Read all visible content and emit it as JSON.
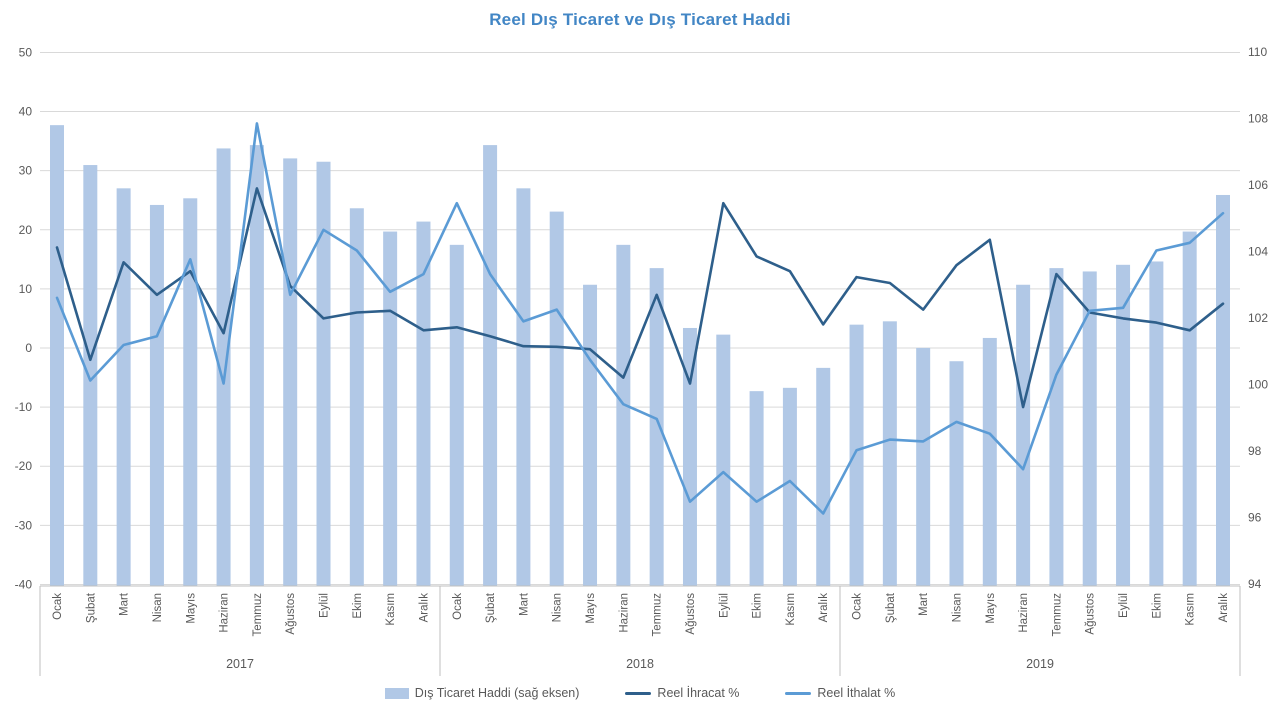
{
  "chart_data": {
    "type": "combo-bar-line",
    "title": "Reel Dış Ticaret ve Dış Ticaret Haddi",
    "months": [
      "Ocak",
      "Şubat",
      "Mart",
      "Nisan",
      "Mayıs",
      "Haziran",
      "Temmuz",
      "Ağustos",
      "Eylül",
      "Ekim",
      "Kasım",
      "Aralık"
    ],
    "years": [
      "2017",
      "2018",
      "2019"
    ],
    "left_axis": {
      "min": -40,
      "max": 50,
      "step": 10,
      "side": "left"
    },
    "right_axis": {
      "min": 94,
      "max": 110,
      "step": 2,
      "side": "right"
    },
    "grid": true,
    "legend_position": "bottom",
    "series": [
      {
        "name": "Dış Ticaret Haddi (sağ eksen)",
        "type": "bar",
        "axis": "right",
        "color": "#b1c8e6",
        "values": [
          107.8,
          106.6,
          105.9,
          105.4,
          105.6,
          107.1,
          107.2,
          106.8,
          106.7,
          105.3,
          104.6,
          104.9,
          104.2,
          107.2,
          105.9,
          105.2,
          103.0,
          104.2,
          103.5,
          101.7,
          101.5,
          99.8,
          99.9,
          100.5,
          101.8,
          101.9,
          101.1,
          100.7,
          101.4,
          103.0,
          103.5,
          103.4,
          103.6,
          103.7,
          104.6,
          105.7
        ]
      },
      {
        "name": "Reel İhracat %",
        "type": "line",
        "axis": "left",
        "color": "#2e5f8b",
        "values": [
          17,
          -2,
          14.5,
          9,
          13,
          2.5,
          27,
          10.5,
          5,
          6,
          6.3,
          3,
          3.5,
          2,
          0.3,
          0.2,
          -0.2,
          -5,
          9,
          -6,
          24.5,
          15.5,
          13,
          4,
          12,
          11,
          6.5,
          14,
          18.3,
          -10,
          12.5,
          6,
          5,
          4.3,
          3,
          7.5
        ]
      },
      {
        "name": "Reel İthalat %",
        "type": "line",
        "axis": "left",
        "color": "#5b9bd5",
        "values": [
          8.5,
          -5.5,
          0.5,
          2,
          15,
          -6,
          38,
          9,
          20,
          16.5,
          9.5,
          12.5,
          24.5,
          12.5,
          4.5,
          6.5,
          -2,
          -9.5,
          -12,
          -26,
          -21,
          -26,
          -22.5,
          -28,
          -17.3,
          -15.5,
          -15.8,
          -12.5,
          -14.5,
          -20.5,
          -4.5,
          6.3,
          6.8,
          16.5,
          17.8,
          22.8
        ]
      }
    ],
    "colors": {
      "title": "#4286c5",
      "axis_text": "#595959",
      "gridline": "#d9d9d9",
      "axis_line": "#bfbfbf"
    }
  },
  "legend": {
    "bar_label": "Dış Ticaret Haddi (sağ eksen)",
    "export_label": "Reel İhracat %",
    "import_label": "Reel İthalat %"
  }
}
